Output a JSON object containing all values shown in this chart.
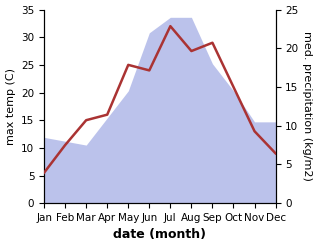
{
  "months": [
    "Jan",
    "Feb",
    "Mar",
    "Apr",
    "May",
    "Jun",
    "Jul",
    "Aug",
    "Sep",
    "Oct",
    "Nov",
    "Dec"
  ],
  "temp": [
    5.5,
    10.5,
    15.0,
    16.0,
    25.0,
    24.0,
    32.0,
    27.5,
    29.0,
    21.0,
    13.0,
    9.0
  ],
  "precip": [
    8.5,
    8.0,
    7.5,
    11.0,
    14.5,
    22.0,
    24.0,
    24.0,
    18.0,
    14.5,
    10.5,
    10.5
  ],
  "temp_color": "#aa3333",
  "precip_color": "#b0b8e8",
  "ylabel_left": "max temp (C)",
  "ylabel_right": "med. precipitation (kg/m2)",
  "xlabel": "date (month)",
  "ylim_left": [
    0,
    35
  ],
  "ylim_right": [
    0,
    25
  ],
  "yticks_left": [
    0,
    5,
    10,
    15,
    20,
    25,
    30,
    35
  ],
  "yticks_right": [
    0,
    5,
    10,
    15,
    20,
    25
  ],
  "bg_color": "#ffffff",
  "temp_linewidth": 1.8,
  "xlabel_fontsize": 9,
  "ylabel_fontsize": 8,
  "tick_fontsize": 7.5
}
